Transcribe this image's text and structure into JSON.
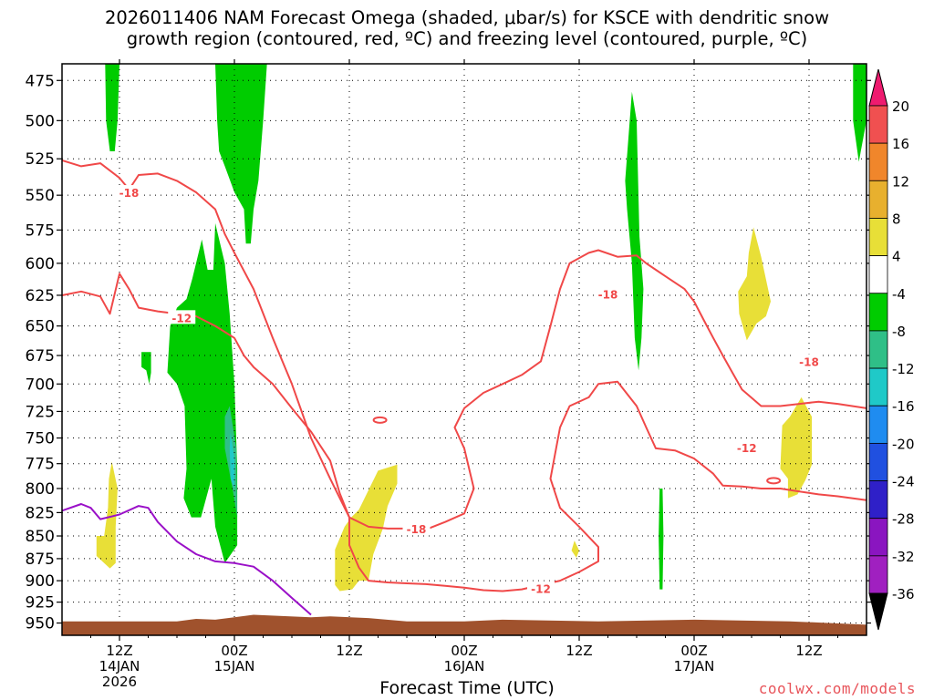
{
  "chart_data": {
    "type": "heatmap",
    "title_line1": "2026011406 NAM Forecast Omega (shaded, μbar/s) for KSCE with dendritic snow",
    "title_line2": "growth region (contoured, red, ºC) and freezing level (contoured, purple, ºC)",
    "xlabel": "Forecast Time (UTC)",
    "watermark": "coolwx.com/models",
    "y_levels": [
      "475",
      "500",
      "525",
      "550",
      "575",
      "600",
      "625",
      "650",
      "675",
      "700",
      "725",
      "750",
      "775",
      "800",
      "825",
      "850",
      "875",
      "900",
      "925",
      "950"
    ],
    "ylim": [
      465,
      965
    ],
    "y_scale": "log-pressure",
    "x_ticks": [
      {
        "h": 30,
        "l1": "12Z",
        "l2": "14JAN",
        "l3": "2026"
      },
      {
        "h": 42,
        "l1": "00Z",
        "l2": "15JAN",
        "l3": ""
      },
      {
        "h": 54,
        "l1": "12Z",
        "l2": "",
        "l3": ""
      },
      {
        "h": 66,
        "l1": "00Z",
        "l2": "16JAN",
        "l3": ""
      },
      {
        "h": 78,
        "l1": "12Z",
        "l2": "",
        "l3": ""
      },
      {
        "h": 90,
        "l1": "00Z",
        "l2": "17JAN",
        "l3": ""
      },
      {
        "h": 102,
        "l1": "12Z",
        "l2": "",
        "l3": ""
      }
    ],
    "xlim": [
      24,
      108
    ],
    "grid": true,
    "colorbar": {
      "labels": [
        "20",
        "16",
        "12",
        "8",
        "4",
        "-4",
        "-8",
        "-12",
        "-16",
        "-20",
        "-24",
        "-28",
        "-32",
        "-36"
      ],
      "colors": [
        "#ee1b6f",
        "#f05050",
        "#f0862b",
        "#e8b02e",
        "#e8df37",
        "#ffffff",
        "#00cc00",
        "#2fbf87",
        "#1fc9c8",
        "#1f8cf0",
        "#2050e0",
        "#2f20c8",
        "#8a15c0",
        "#a020c0",
        "#9f9f9f",
        "#000000"
      ]
    },
    "contours": {
      "red": [
        {
          "name": "-18",
          "points": [
            [
              24,
              526
            ],
            [
              26,
              530
            ],
            [
              28,
              528
            ],
            [
              30,
              538
            ],
            [
              31,
              546
            ],
            [
              32,
              536
            ],
            [
              34,
              535
            ],
            [
              36,
              540
            ],
            [
              38,
              548
            ],
            [
              40,
              560
            ],
            [
              41,
              578
            ],
            [
              42,
              592
            ],
            [
              44,
              620
            ],
            [
              46,
              660
            ],
            [
              48,
              700
            ],
            [
              50,
              750
            ],
            [
              52,
              790
            ],
            [
              54,
              830
            ],
            [
              56,
              840
            ],
            [
              58,
              842
            ],
            [
              60,
              842
            ],
            [
              62,
              843
            ],
            [
              64,
              835
            ],
            [
              66,
              826
            ],
            [
              67,
              800
            ],
            [
              66,
              760
            ],
            [
              65,
              740
            ],
            [
              66,
              722
            ],
            [
              68,
              708
            ],
            [
              70,
              700
            ],
            [
              72,
              692
            ],
            [
              74,
              680
            ],
            [
              75,
              650
            ],
            [
              76,
              620
            ],
            [
              77,
              600
            ],
            [
              79,
              592
            ],
            [
              80,
              590
            ],
            [
              82,
              595
            ],
            [
              84,
              594
            ],
            [
              85,
              600
            ],
            [
              86,
              605
            ],
            [
              87,
              610
            ],
            [
              89,
              620
            ],
            [
              90,
              630
            ],
            [
              91,
              645
            ],
            [
              92,
              660
            ],
            [
              93,
              675
            ],
            [
              94,
              690
            ],
            [
              95,
              705
            ],
            [
              97,
              720
            ],
            [
              99,
              720
            ],
            [
              101,
              718
            ],
            [
              103,
              716
            ],
            [
              105,
              718
            ],
            [
              108,
              722
            ]
          ]
        },
        {
          "name": "-12",
          "points": [
            [
              24,
              625
            ],
            [
              26,
              622
            ],
            [
              28,
              626
            ],
            [
              29,
              640
            ],
            [
              30,
              608
            ],
            [
              31,
              620
            ],
            [
              32,
              635
            ],
            [
              34,
              638
            ],
            [
              36,
              640
            ],
            [
              38,
              642
            ],
            [
              40,
              650
            ],
            [
              42,
              660
            ],
            [
              43,
              675
            ],
            [
              44,
              685
            ],
            [
              46,
              700
            ],
            [
              48,
              722
            ],
            [
              50,
              744
            ],
            [
              52,
              772
            ],
            [
              53,
              805
            ],
            [
              54,
              830
            ],
            [
              54,
              860
            ],
            [
              55,
              885
            ],
            [
              56,
              900
            ],
            [
              58,
              902
            ],
            [
              60,
              903
            ],
            [
              62,
              904
            ],
            [
              64,
              906
            ],
            [
              66,
              908
            ],
            [
              68,
              911
            ],
            [
              70,
              912
            ],
            [
              72,
              910
            ],
            [
              74,
              905
            ],
            [
              76,
              900
            ],
            [
              78,
              890
            ],
            [
              80,
              878
            ],
            [
              80,
              862
            ],
            [
              78,
              840
            ],
            [
              76,
              820
            ],
            [
              75,
              790
            ],
            [
              76,
              740
            ],
            [
              77,
              720
            ],
            [
              79,
              712
            ],
            [
              80,
              700
            ],
            [
              82,
              698
            ],
            [
              84,
              720
            ],
            [
              85,
              740
            ],
            [
              86,
              760
            ],
            [
              88,
              762
            ],
            [
              90,
              770
            ],
            [
              92,
              785
            ],
            [
              93,
              797
            ],
            [
              95,
              798
            ],
            [
              97,
              800
            ],
            [
              99,
              800
            ],
            [
              101,
              803
            ],
            [
              103,
              806
            ],
            [
              105,
              808
            ],
            [
              108,
              812
            ]
          ]
        }
      ],
      "purple": [
        {
          "name": "0",
          "points": [
            [
              24,
              823
            ],
            [
              26,
              816
            ],
            [
              27,
              820
            ],
            [
              28,
              832
            ],
            [
              30,
              827
            ],
            [
              32,
              818
            ],
            [
              33,
              820
            ],
            [
              34,
              835
            ],
            [
              36,
              856
            ],
            [
              38,
              870
            ],
            [
              40,
              878
            ],
            [
              42,
              880
            ],
            [
              44,
              884
            ],
            [
              46,
              900
            ],
            [
              48,
              920
            ],
            [
              50,
              940
            ]
          ]
        }
      ]
    }
  }
}
